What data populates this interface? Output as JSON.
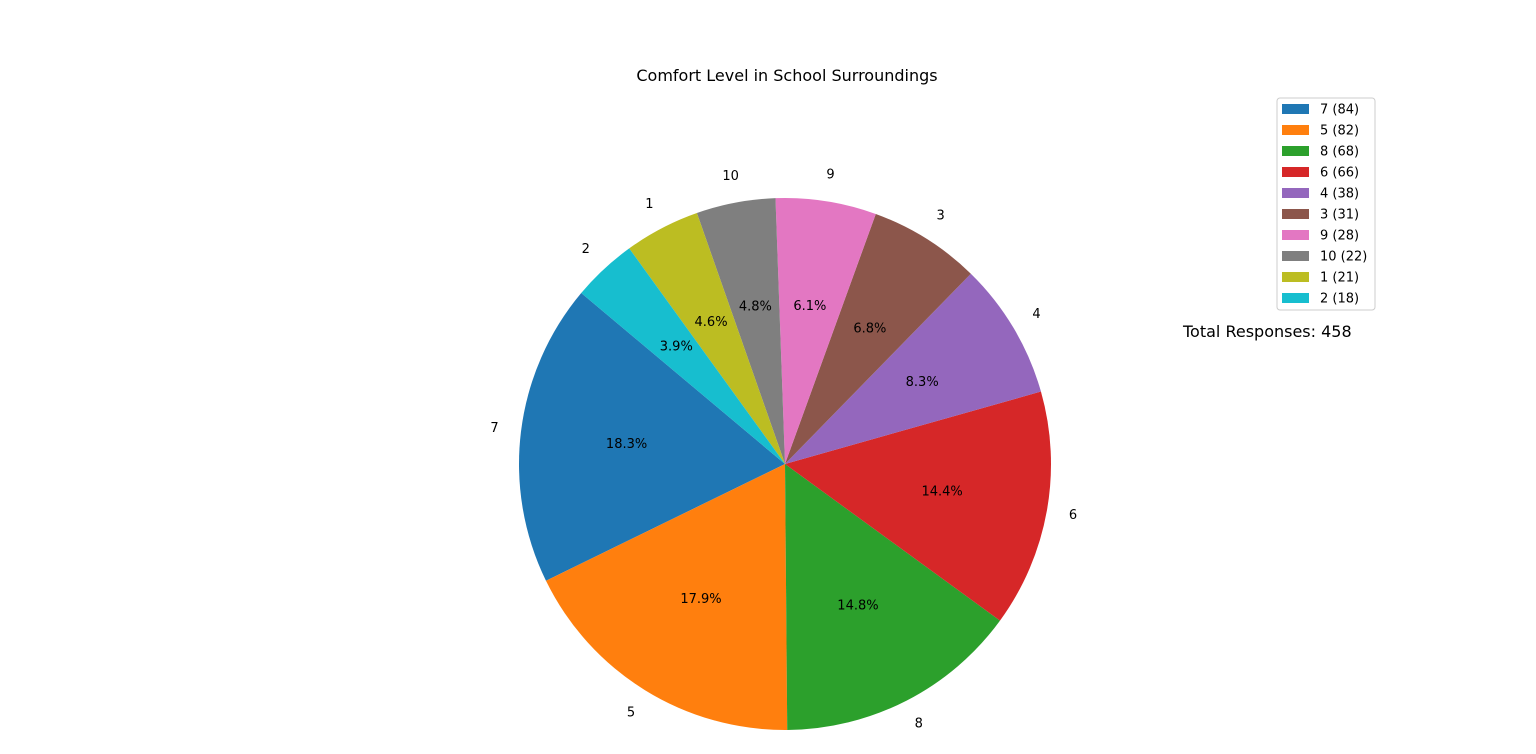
{
  "chart_data": {
    "type": "pie",
    "title": "Comfort Level in School Surroundings",
    "categories": [
      "7",
      "5",
      "8",
      "6",
      "4",
      "3",
      "9",
      "10",
      "1",
      "2"
    ],
    "values": [
      84,
      82,
      68,
      66,
      38,
      31,
      28,
      22,
      21,
      18
    ],
    "percent_labels": [
      "18.3%",
      "17.9%",
      "14.8%",
      "14.4%",
      "8.3%",
      "6.8%",
      "6.1%",
      "4.8%",
      "4.6%",
      "3.9%"
    ],
    "legend_entries": [
      "7 (84)",
      "5 (82)",
      "8 (68)",
      "6 (66)",
      "4 (38)",
      "3 (31)",
      "9 (28)",
      "10 (22)",
      "1 (21)",
      "2 (18)"
    ],
    "colors": [
      "#1f77b4",
      "#ff7f0e",
      "#2ca02c",
      "#d62728",
      "#9467bd",
      "#8c564b",
      "#e377c2",
      "#7f7f7f",
      "#bcbd22",
      "#17becf"
    ],
    "legend_placement": "top-right",
    "start_angle_deg": 140,
    "direction": "counterclockwise",
    "annotation": "Total Responses: 458"
  }
}
